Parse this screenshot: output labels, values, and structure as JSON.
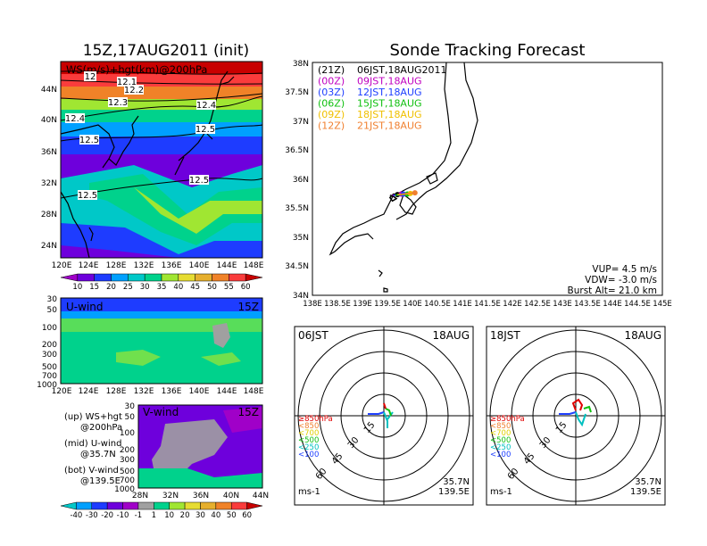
{
  "left_title": "15Z,17AUG2011 (init)",
  "right_title": "Sonde Tracking Forecast",
  "map_label": "WS(m/s)+hgt(km)@200hPa",
  "map_lat_ticks": [
    "44N",
    "40N",
    "36N",
    "32N",
    "28N",
    "24N"
  ],
  "map_lon_ticks": [
    "120E",
    "124E",
    "128E",
    "132E",
    "136E",
    "140E",
    "144E",
    "148E"
  ],
  "contour_labels": [
    "12",
    "12.1",
    "12.2",
    "12.3",
    "12.4",
    "12.4",
    "12.5",
    "12.5",
    "12.5",
    "12.5"
  ],
  "ws_colorbar": {
    "labels": [
      "10",
      "15",
      "20",
      "25",
      "30",
      "35",
      "40",
      "45",
      "50",
      "55",
      "60"
    ],
    "colors": [
      "#a000c8",
      "#6e00dc",
      "#1e3cff",
      "#00a0ff",
      "#00c8c8",
      "#00d28c",
      "#a0e632",
      "#e6dc32",
      "#e6af2d",
      "#f08228",
      "#fa3c3c",
      "#c80000"
    ]
  },
  "u_panel": {
    "label": "U-wind",
    "time": "15Z",
    "p_ticks": [
      "30",
      "50",
      "100",
      "200",
      "300",
      "500",
      "700",
      "1000"
    ],
    "lon_ticks": [
      "120E",
      "124E",
      "128E",
      "132E",
      "136E",
      "140E",
      "144E",
      "148E"
    ]
  },
  "v_panel": {
    "label": "V-wind",
    "time": "15Z",
    "p_ticks": [
      "30",
      "50",
      "100",
      "200",
      "300",
      "500",
      "700",
      "1000"
    ],
    "lat_ticks": [
      "28N",
      "32N",
      "36N",
      "40N",
      "44N"
    ]
  },
  "legend_text": {
    "up1": "(up) WS+hgt",
    "up2": "@200hPa",
    "mid1": "(mid) U-wind",
    "mid2": "@35.7N",
    "bot1": "(bot) V-wind",
    "bot2": "@139.5E"
  },
  "uv_colorbar": {
    "labels": [
      "-40",
      "-30",
      "-20",
      "-10",
      "-1",
      "1",
      "10",
      "20",
      "30",
      "40",
      "50",
      "60"
    ],
    "colors": [
      "#00c8c8",
      "#00a0ff",
      "#1e3cff",
      "#6e00dc",
      "#a000c8",
      "#a0a0a0",
      "#00d28c",
      "#a0e632",
      "#e6dc32",
      "#e6af2d",
      "#f08228",
      "#fa3c3c",
      "#c80000"
    ]
  },
  "track_map": {
    "lat_ticks": [
      "38N",
      "37.5N",
      "37N",
      "36.5N",
      "36N",
      "35.5N",
      "35N",
      "34.5N",
      "34N"
    ],
    "lon_ticks": [
      "138E",
      "138.5E",
      "139E",
      "139.5E",
      "140E",
      "140.5E",
      "141E",
      "141.5E",
      "142E",
      "142.5E",
      "143E",
      "143.5E",
      "144E",
      "144.5E",
      "145E"
    ],
    "legend": [
      {
        "z": "(21Z)",
        "jst": "06JST,18AUG2011",
        "color": "#000000"
      },
      {
        "z": "(00Z)",
        "jst": "09JST,18AUG",
        "color": "#c000c0"
      },
      {
        "z": "(03Z)",
        "jst": "12JST,18AUG",
        "color": "#2040ff"
      },
      {
        "z": "(06Z)",
        "jst": "15JST,18AUG",
        "color": "#10c010"
      },
      {
        "z": "(09Z)",
        "jst": "18JST,18AUG",
        "color": "#f0c000"
      },
      {
        "z": "(12Z)",
        "jst": "21JST,18AUG",
        "color": "#f08030"
      }
    ],
    "vup": "VUP= 4.5 m/s",
    "vdw": "VDW= -3.0 m/s",
    "burst": "Burst Alt= 21.0 km"
  },
  "hodo_left": {
    "time": "06JST",
    "date": "18AUG",
    "unit": "ms-1",
    "lat": "35.7N",
    "lon": "139.5E",
    "rings": [
      "15",
      "30",
      "45",
      "60"
    ]
  },
  "hodo_right": {
    "time": "18JST",
    "date": "18AUG",
    "unit": "ms-1",
    "lat": "35.7N",
    "lon": "139.5E",
    "rings": [
      "15",
      "30",
      "45",
      "60"
    ]
  },
  "hodo_legend": [
    {
      "text": "≥850hPa",
      "color": "#e00000"
    },
    {
      "text": "<850",
      "color": "#f08030"
    },
    {
      "text": "<700",
      "color": "#e0d000"
    },
    {
      "text": "<500",
      "color": "#10c010"
    },
    {
      "text": "<250",
      "color": "#00c0c0"
    },
    {
      "text": "<100",
      "color": "#2040ff"
    }
  ]
}
